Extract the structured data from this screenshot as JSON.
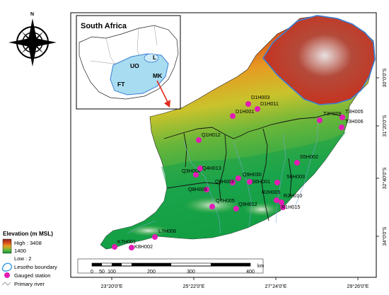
{
  "map": {
    "lon_labels": [
      "23°20'0\"E",
      "25°22'0\"E",
      "27°24'0\"E",
      "29°26'0\"E"
    ],
    "lat_labels": [
      "30°0'0\"S",
      "31°20'0\"S",
      "32°40'0\"S",
      "34°0'0\"S"
    ],
    "inset": {
      "title": "South Africa",
      "region_labels": [
        "UO",
        "L",
        "MK",
        "FT"
      ]
    },
    "stations": [
      {
        "name": "D1H003"
      },
      {
        "name": "D1H011"
      },
      {
        "name": "D1H001"
      },
      {
        "name": "T3H009"
      },
      {
        "name": "T3H005"
      },
      {
        "name": "T3H006"
      },
      {
        "name": "Q1H012"
      },
      {
        "name": "S5H002"
      },
      {
        "name": "Q3H004"
      },
      {
        "name": "Q4H013"
      },
      {
        "name": "Q9H030"
      },
      {
        "name": "Q8H003"
      },
      {
        "name": "S6H001"
      },
      {
        "name": "S6H003"
      },
      {
        "name": "Q8H008"
      },
      {
        "name": "R2H005"
      },
      {
        "name": "R2H010"
      },
      {
        "name": "Q7H005"
      },
      {
        "name": "Q9H012"
      },
      {
        "name": "R1H015"
      },
      {
        "name": "L7H006"
      },
      {
        "name": "K7H001"
      },
      {
        "name": "K8H002"
      }
    ],
    "legend": {
      "title": "Elevation (m MSL)",
      "high": "High : 3408",
      "mid": "1400",
      "low": "Low : 2",
      "lesotho": "Lesotho boundary",
      "gauged": "Gauged station",
      "river": "Primary river"
    },
    "scale": {
      "ticks": [
        "0",
        "50",
        "100",
        "200",
        "300",
        "400"
      ],
      "unit": "km"
    },
    "north_label": "N",
    "colors": {
      "high": "#8b2a1f",
      "mid_high": "#d84a1c",
      "mid": "#e6a021",
      "low_mid": "#6fb83a",
      "low": "#0c9a3c",
      "lesotho": "#3a7fd6",
      "station": "#e21cb4"
    }
  }
}
